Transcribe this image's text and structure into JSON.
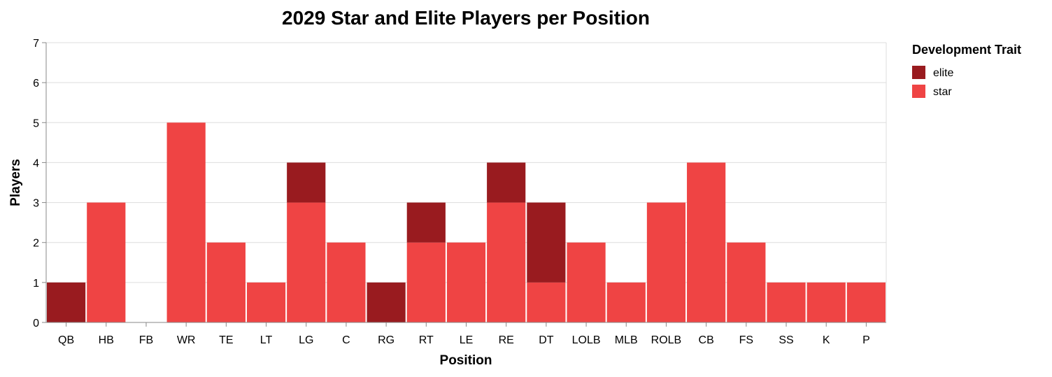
{
  "chart_data": {
    "type": "bar",
    "stacked": true,
    "title": "2029 Star and Elite Players per Position",
    "xlabel": "Position",
    "ylabel": "Players",
    "ylim": [
      0,
      7
    ],
    "yticks": [
      0,
      1,
      2,
      3,
      4,
      5,
      6,
      7
    ],
    "grid": true,
    "legend": {
      "title": "Development Trait",
      "placement": "top-right"
    },
    "categories": [
      "QB",
      "HB",
      "FB",
      "WR",
      "TE",
      "LT",
      "LG",
      "C",
      "RG",
      "RT",
      "LE",
      "RE",
      "DT",
      "LOLB",
      "MLB",
      "ROLB",
      "CB",
      "FS",
      "SS",
      "K",
      "P"
    ],
    "series": [
      {
        "name": "star",
        "color": "#ef4444",
        "values": [
          0,
          3,
          0,
          5,
          2,
          1,
          3,
          2,
          0,
          2,
          2,
          3,
          1,
          2,
          1,
          3,
          4,
          2,
          1,
          1,
          1
        ]
      },
      {
        "name": "elite",
        "color": "#991b1f",
        "values": [
          1,
          0,
          0,
          0,
          0,
          0,
          1,
          0,
          1,
          1,
          0,
          1,
          2,
          0,
          0,
          0,
          0,
          0,
          0,
          0,
          0
        ]
      }
    ]
  }
}
